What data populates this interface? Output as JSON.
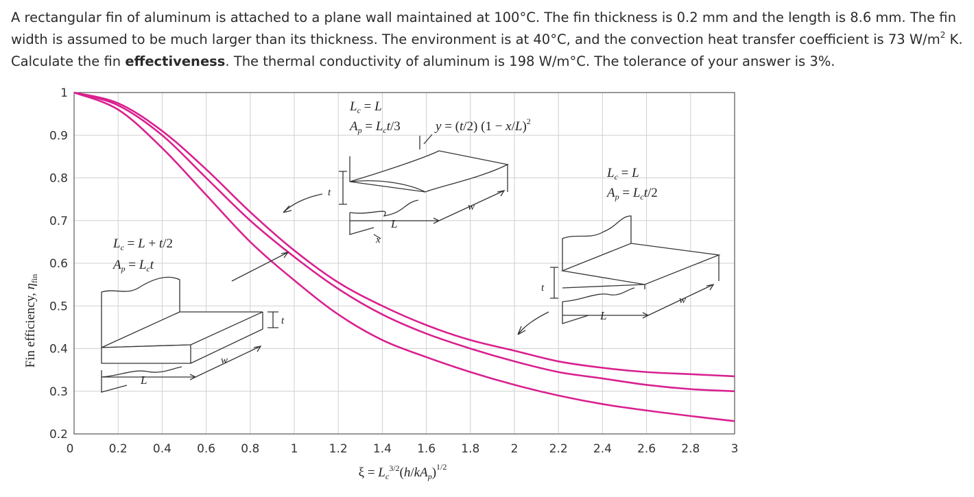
{
  "question": {
    "part1": "A rectangular fin of aluminum is attached to a plane wall maintained at 100°C. The fin thickness is 0.2 mm and the length is 8.6 mm. The fin width is assumed to be much larger than its thickness. The environment is at 40°C, and the convection heat transfer coefficient is 73 W/m",
    "sup": "2",
    "part2": " K. Calculate the fin ",
    "bold": "effectiveness",
    "part3": ". The thermal conductivity of aluminum is 198 W/m°C. The tolerance of your answer is 3%."
  },
  "chart_data": {
    "type": "line",
    "xlabel": "ξ = L_c^{3/2}(h/kA_p)^{1/2}",
    "ylabel": "Fin efficiency, η_fin",
    "xlim": [
      0,
      3
    ],
    "ylim": [
      0.2,
      1
    ],
    "x_ticks": [
      "0",
      "0.2",
      "0.4",
      "0.6",
      "0.8",
      "1",
      "1.2",
      "1.4",
      "1.6",
      "1.8",
      "2",
      "2.2",
      "2.4",
      "2.6",
      "2.8",
      "3"
    ],
    "y_ticks": [
      "0.2",
      "0.3",
      "0.4",
      "0.5",
      "0.6",
      "0.7",
      "0.8",
      "0.9",
      "1"
    ],
    "grid": true,
    "line_color": "#d9208f",
    "series": [
      {
        "x": [
          0,
          0.2,
          0.4,
          0.6,
          0.8,
          1.0,
          1.2,
          1.4,
          1.6,
          1.8,
          2.0,
          2.2,
          2.4,
          2.6,
          2.8,
          3.0
        ],
        "values": [
          1.0,
          0.975,
          0.91,
          0.82,
          0.72,
          0.63,
          0.555,
          0.5,
          0.455,
          0.42,
          0.395,
          0.37,
          0.355,
          0.345,
          0.34,
          0.335
        ]
      },
      {
        "x": [
          0,
          0.2,
          0.4,
          0.6,
          0.8,
          1.0,
          1.2,
          1.4,
          1.6,
          1.8,
          2.0,
          2.2,
          2.4,
          2.6,
          2.8,
          3.0
        ],
        "values": [
          1.0,
          0.97,
          0.9,
          0.8,
          0.7,
          0.615,
          0.54,
          0.48,
          0.435,
          0.4,
          0.37,
          0.345,
          0.33,
          0.315,
          0.305,
          0.3
        ]
      },
      {
        "x": [
          0,
          0.2,
          0.4,
          0.6,
          0.8,
          1.0,
          1.2,
          1.4,
          1.6,
          1.8,
          2.0,
          2.2,
          2.4,
          2.6,
          2.8,
          3.0
        ],
        "values": [
          1.0,
          0.96,
          0.87,
          0.76,
          0.65,
          0.56,
          0.48,
          0.42,
          0.38,
          0.345,
          0.315,
          0.29,
          0.27,
          0.255,
          0.242,
          0.23
        ]
      }
    ],
    "annotations": {
      "top_lc": "L_c = L",
      "top_ap": "A_p = L_c t/3",
      "top_eq": "y = (t/2) (1 − x/L)²",
      "right_lc": "L_c = L",
      "right_ap": "A_p = L_c t/2",
      "left_lc": "L_c = L + t/2",
      "left_ap": "A_p = L_c t",
      "sym_t": "t",
      "sym_w": "w",
      "sym_L": "L",
      "sym_x": "x"
    }
  }
}
